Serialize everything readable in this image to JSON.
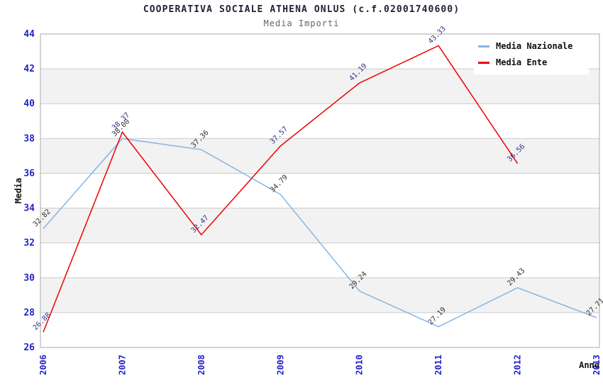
{
  "header": {
    "title": "COOPERATIVA SOCIALE ATHENA ONLUS (c.f.02001740600)",
    "subtitle": "Media Importi"
  },
  "legend": {
    "items": [
      {
        "label": "Media Nazionale",
        "color": "#85b5e5"
      },
      {
        "label": "Media Ente",
        "color": "#ee0000"
      }
    ]
  },
  "chart_data": {
    "type": "line",
    "title": "COOPERATIVA SOCIALE ATHENA ONLUS (c.f.02001740600)",
    "subtitle": "Media Importi",
    "xlabel": "Anno",
    "ylabel": "Media",
    "x": [
      "2006",
      "2007",
      "2008",
      "2009",
      "2010",
      "2011",
      "2012",
      "2013"
    ],
    "ylim": [
      26,
      44
    ],
    "ytick_step": 2,
    "grid": "horizontal",
    "legend_position": "top-right",
    "series": [
      {
        "name": "Media Nazionale",
        "color": "#85b5e5",
        "label_color": "#333333",
        "values": [
          32.82,
          38.0,
          37.36,
          34.79,
          29.24,
          27.19,
          29.43,
          27.71
        ],
        "labels": [
          "32.82",
          "38.00",
          "37.36",
          "34.79",
          "29.24",
          "27.19",
          "29.43",
          "27.71"
        ]
      },
      {
        "name": "Media Ente",
        "color": "#ee0000",
        "label_color": "#333388",
        "values": [
          26.88,
          38.37,
          32.47,
          37.57,
          41.19,
          43.33,
          36.56,
          null
        ],
        "labels": [
          "26.88",
          "38.37",
          "32.47",
          "37.57",
          "41.19",
          "43.33",
          "36.56",
          null
        ]
      }
    ],
    "band_color": "#f2f2f2",
    "grid_color": "#cccccc",
    "border_color": "#aaaaaa",
    "tick_label_color": "#2222cc",
    "axis_title_color": "#111111"
  }
}
